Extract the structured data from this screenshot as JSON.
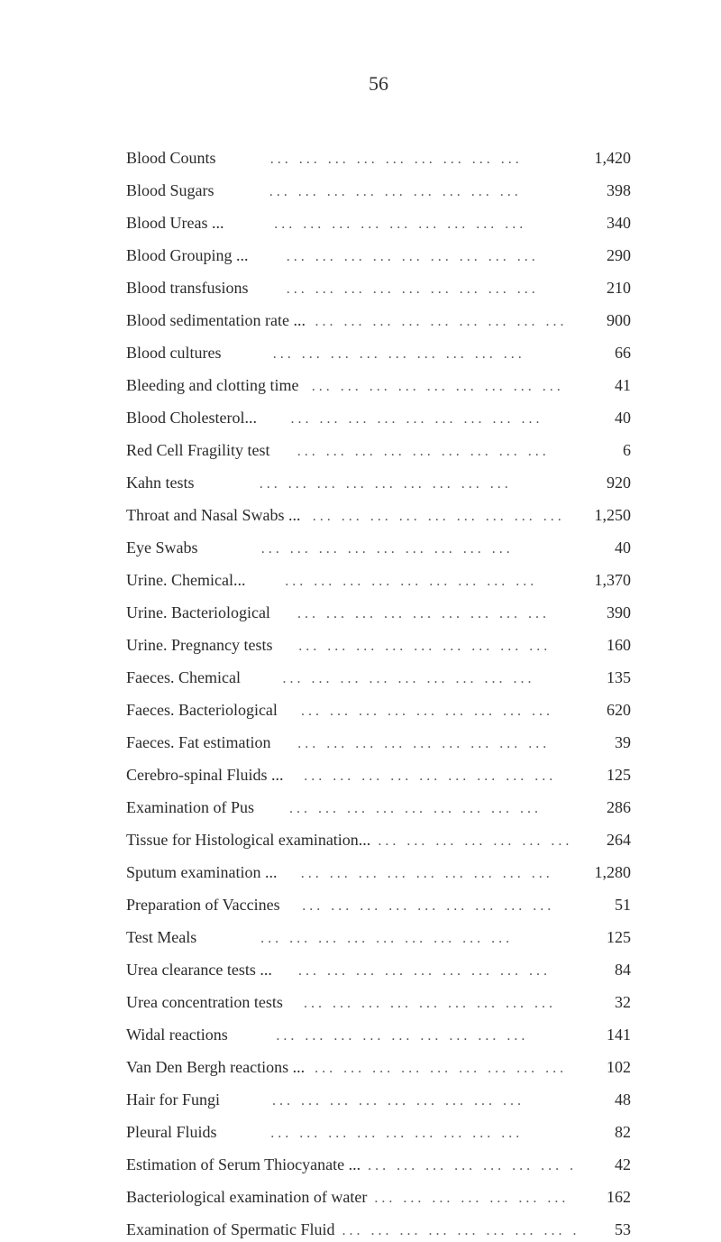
{
  "page_number": "56",
  "dots": "...  ...  ...  ...  ...  ...  ...  ...  ...",
  "entries": [
    {
      "label": "Blood Counts",
      "value": "1,420"
    },
    {
      "label": "Blood Sugars",
      "value": "398"
    },
    {
      "label": "Blood Ureas ...",
      "value": "340"
    },
    {
      "label": "Blood Grouping ...",
      "value": "290"
    },
    {
      "label": "Blood transfusions",
      "value": "210"
    },
    {
      "label": "Blood sedimentation rate ...",
      "value": "900"
    },
    {
      "label": "Blood cultures",
      "value": "66"
    },
    {
      "label": "Bleeding and clotting time",
      "value": "41"
    },
    {
      "label": "Blood Cholesterol...",
      "value": "40"
    },
    {
      "label": "Red Cell Fragility test",
      "value": "6"
    },
    {
      "label": "Kahn tests",
      "value": "920"
    },
    {
      "label": "Throat and Nasal Swabs ...",
      "value": "1,250"
    },
    {
      "label": "Eye Swabs",
      "value": "40"
    },
    {
      "label": "Urine.   Chemical...",
      "value": "1,370"
    },
    {
      "label": "Urine.   Bacteriological",
      "value": "390"
    },
    {
      "label": "Urine.   Pregnancy tests",
      "value": "160"
    },
    {
      "label": "Faeces.   Chemical",
      "value": "135"
    },
    {
      "label": "Faeces.   Bacteriological",
      "value": "620"
    },
    {
      "label": "Faeces.   Fat estimation",
      "value": "39"
    },
    {
      "label": "Cerebro-spinal Fluids ...",
      "value": "125"
    },
    {
      "label": "Examination of Pus",
      "value": "286"
    },
    {
      "label": "Tissue for Histological examination...",
      "value": "264"
    },
    {
      "label": "Sputum examination ...",
      "value": "1,280"
    },
    {
      "label": "Preparation of Vaccines",
      "value": "51"
    },
    {
      "label": "Test Meals",
      "value": "125"
    },
    {
      "label": "Urea clearance tests ...",
      "value": "84"
    },
    {
      "label": "Urea concentration tests",
      "value": "32"
    },
    {
      "label": "Widal reactions",
      "value": "141"
    },
    {
      "label": "Van Den Bergh reactions ...",
      "value": "102"
    },
    {
      "label": "Hair for Fungi",
      "value": "48"
    },
    {
      "label": "Pleural Fluids",
      "value": "82"
    },
    {
      "label": "Estimation of Serum Thiocyanate ...",
      "value": "42"
    },
    {
      "label": "Bacteriological examination of water",
      "value": "162"
    },
    {
      "label": "Examination of Spermatic Fluid",
      "value": "53"
    }
  ]
}
